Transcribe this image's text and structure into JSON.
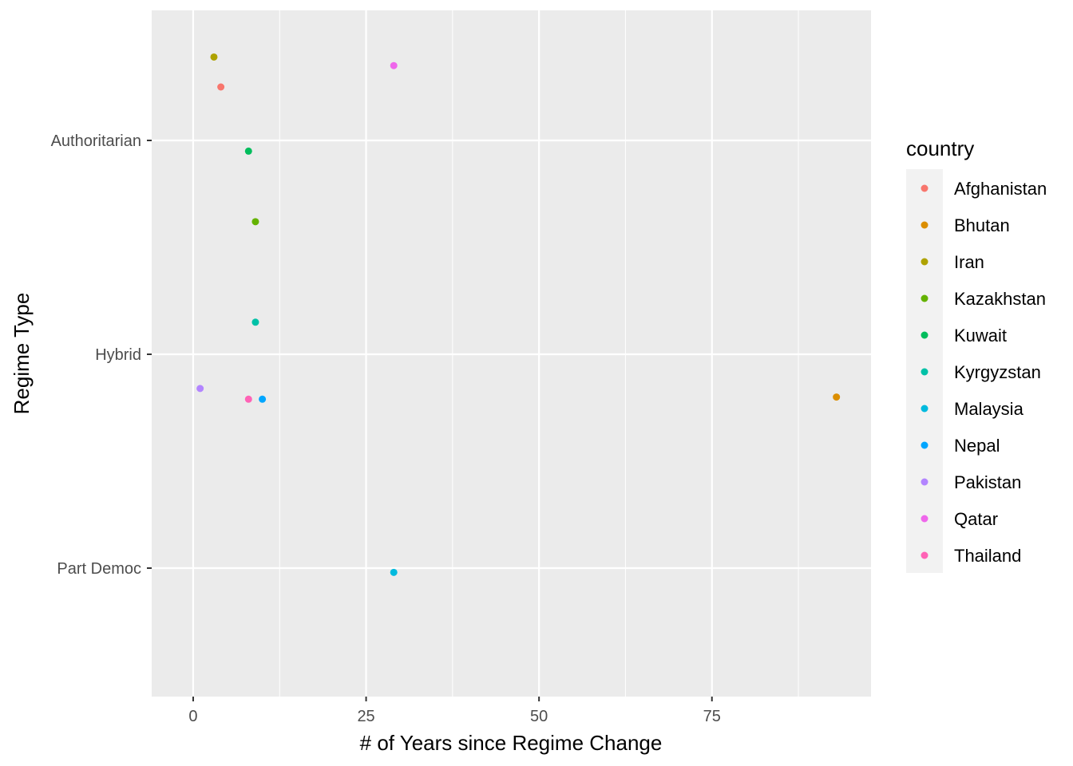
{
  "chart_data": {
    "type": "scatter",
    "title": "",
    "xlabel": "# of Years since Regime Change",
    "ylabel": "Regime Type",
    "xlim": [
      -6,
      98
    ],
    "x_ticks": [
      0,
      25,
      50,
      75
    ],
    "y_categories": [
      "Authoritarian",
      "Hybrid",
      "Part Democ"
    ],
    "grid": true,
    "background": "#ebebeb",
    "legend": {
      "title": "country",
      "position": "right"
    },
    "series": [
      {
        "name": "Afghanistan",
        "color": "#F8766D",
        "points": [
          {
            "x": 4,
            "y": "Authoritarian",
            "jitter": 0.25
          }
        ]
      },
      {
        "name": "Bhutan",
        "color": "#DB8E00",
        "points": [
          {
            "x": 93,
            "y": "Hybrid",
            "jitter": -0.2
          }
        ]
      },
      {
        "name": "Iran",
        "color": "#AEA200",
        "points": [
          {
            "x": 3,
            "y": "Authoritarian",
            "jitter": 0.39
          }
        ]
      },
      {
        "name": "Kazakhstan",
        "color": "#64B200",
        "points": [
          {
            "x": 9,
            "y": "Authoritarian",
            "jitter": -0.38
          }
        ]
      },
      {
        "name": "Kuwait",
        "color": "#00BD5C",
        "points": [
          {
            "x": 8,
            "y": "Authoritarian",
            "jitter": -0.05
          }
        ]
      },
      {
        "name": "Kyrgyzstan",
        "color": "#00C1A7",
        "points": [
          {
            "x": 9,
            "y": "Hybrid",
            "jitter": 0.15
          }
        ]
      },
      {
        "name": "Malaysia",
        "color": "#00BADE",
        "points": [
          {
            "x": 29,
            "y": "Part Democ",
            "jitter": -0.02
          }
        ]
      },
      {
        "name": "Nepal",
        "color": "#00A6FF",
        "points": [
          {
            "x": 10,
            "y": "Hybrid",
            "jitter": -0.21
          }
        ]
      },
      {
        "name": "Pakistan",
        "color": "#B385FF",
        "points": [
          {
            "x": 1,
            "y": "Hybrid",
            "jitter": -0.16
          }
        ]
      },
      {
        "name": "Qatar",
        "color": "#EF67EB",
        "points": [
          {
            "x": 29,
            "y": "Authoritarian",
            "jitter": 0.35
          }
        ]
      },
      {
        "name": "Thailand",
        "color": "#FF63B6",
        "points": [
          {
            "x": 8,
            "y": "Hybrid",
            "jitter": -0.21
          }
        ]
      }
    ]
  }
}
